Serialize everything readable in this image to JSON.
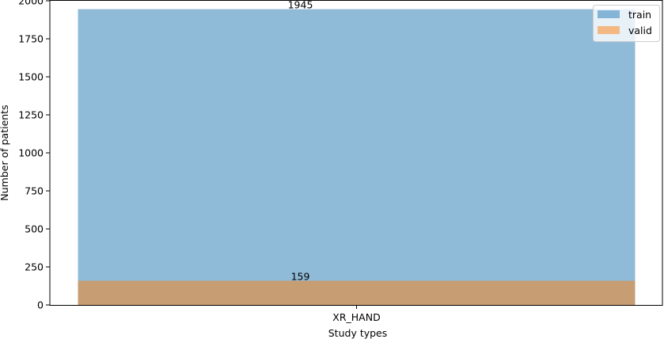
{
  "chart_data": {
    "type": "bar",
    "categories": [
      "XR_HAND"
    ],
    "series": [
      {
        "name": "train",
        "values": [
          1945
        ],
        "color": "#1f77b4",
        "alpha": 0.5
      },
      {
        "name": "valid",
        "values": [
          159
        ],
        "color": "#ff7f0e",
        "alpha": 0.5
      }
    ],
    "overlay": true,
    "data_labels": [
      "1945",
      "159"
    ],
    "title": "",
    "xlabel": "Study types",
    "ylabel": "Number of patients",
    "ylim": [
      0,
      2000
    ],
    "yticks": [
      "0",
      "250",
      "500",
      "750",
      "1000",
      "1250",
      "1500",
      "1750",
      "2000"
    ],
    "grid": false,
    "legend_position": "top-right"
  }
}
